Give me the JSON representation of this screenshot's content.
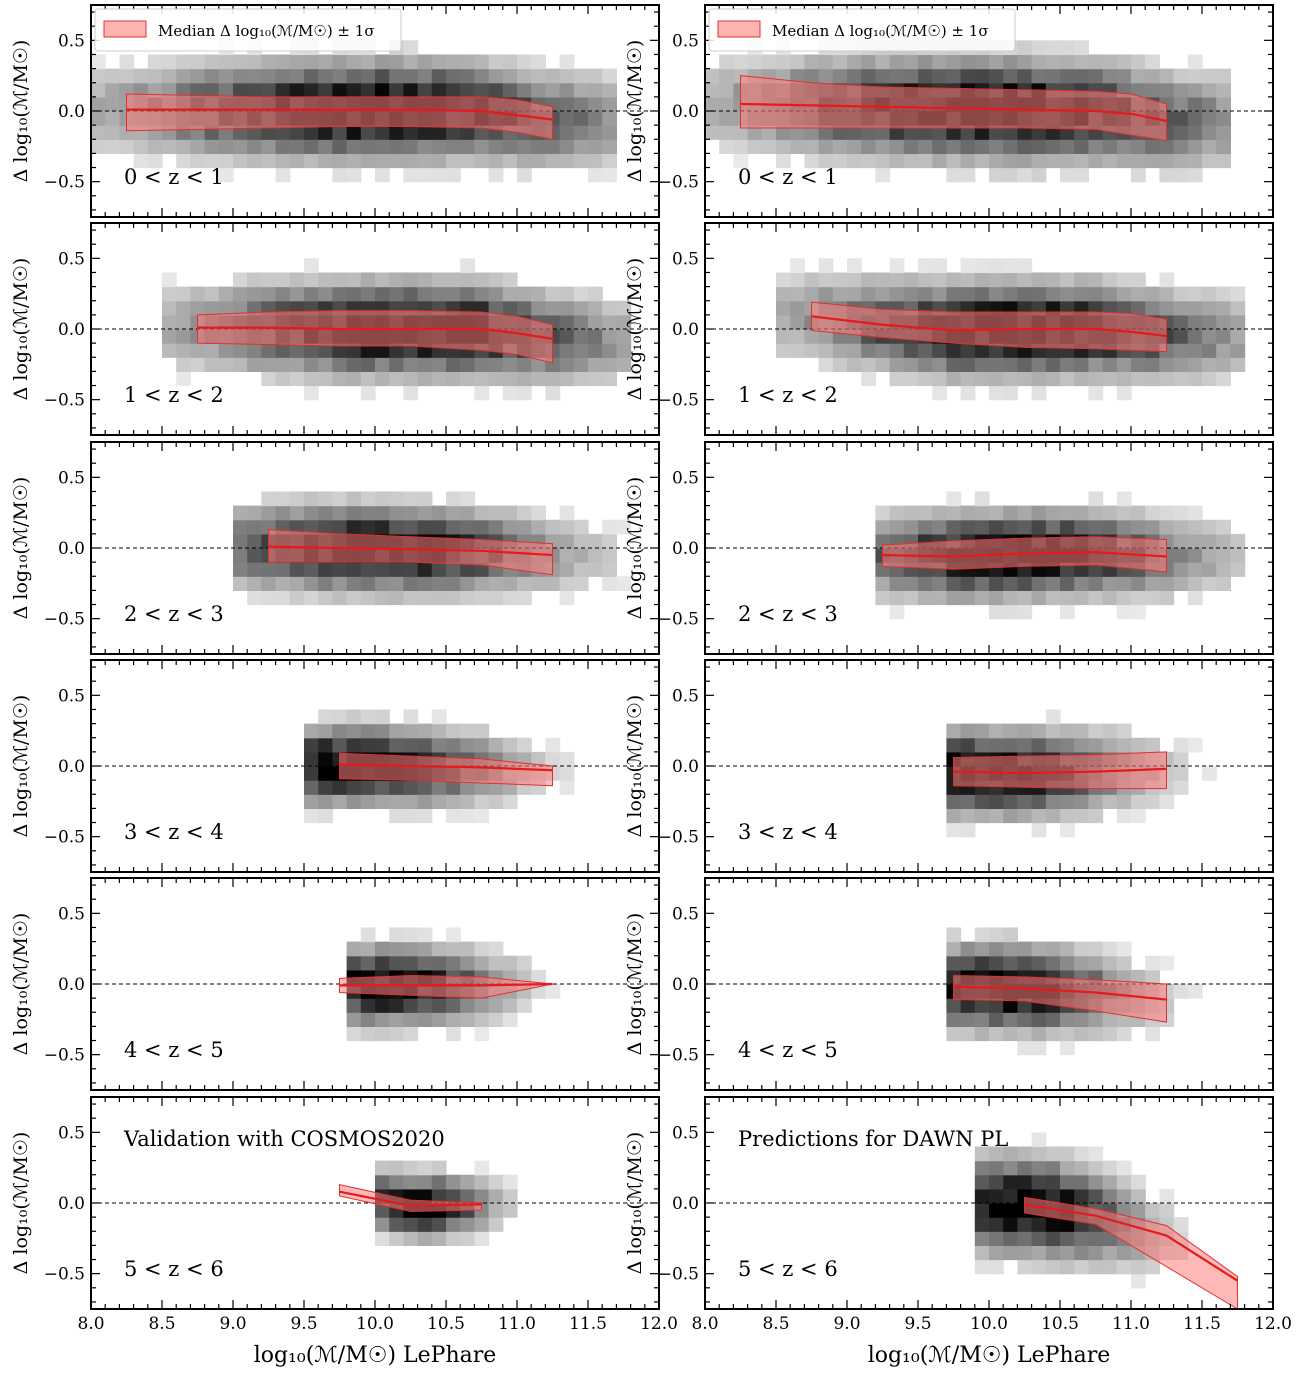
{
  "figure": {
    "left_column_label": "Validation with COSMOS2020",
    "right_column_label": "Predictions for DAWN PL",
    "legend_label": "Median Δ log₁₀(ℳ/M☉) ± 1σ",
    "xlabel": "log₁₀(ℳ/M☉) LePhare",
    "ylabel": "Δ log₁₀(ℳ/M☉)",
    "colors": {
      "band": "#ff8080",
      "band_edge": "#e03030",
      "median": "#e41a1c",
      "hist": "#000000",
      "zero_line": "#000000"
    }
  },
  "chart_data": [
    {
      "type": "heatmap",
      "column": "Validation with COSMOS2020",
      "panel_label": "0 < z < 1",
      "xlabel": "log₁₀(ℳ/M☉) LePhare",
      "ylabel": "Δ log₁₀(ℳ/M☉)",
      "xlim": [
        8.0,
        12.0
      ],
      "ylim": [
        -0.75,
        0.75
      ],
      "xticks": [
        "8.0",
        "8.5",
        "9.0",
        "9.5",
        "10.0",
        "10.5",
        "11.0",
        "11.5",
        "12.0"
      ],
      "yticks": [
        "0.5",
        "0.0",
        "−0.5"
      ],
      "hist_xrange": [
        8.0,
        11.7
      ],
      "hist_spread": 0.25,
      "hist_peak": 10.0,
      "hist_width": 1.4,
      "median": {
        "x": [
          8.25,
          8.75,
          9.25,
          9.75,
          10.25,
          10.75,
          11.0,
          11.25
        ],
        "y": [
          0.01,
          0.01,
          0.01,
          0.01,
          0.01,
          0.0,
          -0.03,
          -0.06
        ]
      },
      "band": {
        "x": [
          8.25,
          8.75,
          9.25,
          9.75,
          10.25,
          10.75,
          11.0,
          11.25
        ],
        "lower": [
          -0.14,
          -0.13,
          -0.12,
          -0.11,
          -0.11,
          -0.12,
          -0.15,
          -0.2
        ],
        "upper": [
          0.12,
          0.11,
          0.1,
          0.1,
          0.1,
          0.1,
          0.08,
          0.03
        ]
      },
      "legend": true
    },
    {
      "type": "heatmap",
      "column": "Predictions for DAWN PL",
      "panel_label": "0 < z < 1",
      "xlabel": "log₁₀(ℳ/M☉) LePhare",
      "ylabel": "Δ log₁₀(ℳ/M☉)",
      "xlim": [
        8.0,
        12.0
      ],
      "ylim": [
        -0.75,
        0.75
      ],
      "xticks": [
        "8.0",
        "8.5",
        "9.0",
        "9.5",
        "10.0",
        "10.5",
        "11.0",
        "11.5",
        "12.0"
      ],
      "yticks": [
        "0.5",
        "0.0",
        "−0.5"
      ],
      "hist_xrange": [
        8.0,
        11.7
      ],
      "hist_spread": 0.26,
      "hist_peak": 10.0,
      "hist_width": 1.4,
      "median": {
        "x": [
          8.25,
          8.75,
          9.25,
          9.75,
          10.25,
          10.75,
          11.0,
          11.25
        ],
        "y": [
          0.05,
          0.04,
          0.03,
          0.02,
          0.01,
          0.0,
          -0.02,
          -0.07
        ]
      },
      "band": {
        "x": [
          8.25,
          8.75,
          9.25,
          9.75,
          10.25,
          10.75,
          11.0,
          11.25
        ],
        "lower": [
          -0.12,
          -0.12,
          -0.12,
          -0.12,
          -0.12,
          -0.13,
          -0.17,
          -0.21
        ],
        "upper": [
          0.25,
          0.2,
          0.17,
          0.16,
          0.15,
          0.14,
          0.12,
          0.05
        ]
      },
      "legend": true
    },
    {
      "type": "heatmap",
      "column": "Validation with COSMOS2020",
      "panel_label": "1 < z < 2",
      "xlabel": "log₁₀(ℳ/M☉) LePhare",
      "ylabel": "Δ log₁₀(ℳ/M☉)",
      "xlim": [
        8.0,
        12.0
      ],
      "ylim": [
        -0.75,
        0.75
      ],
      "xticks": [
        "8.0",
        "8.5",
        "9.0",
        "9.5",
        "10.0",
        "10.5",
        "11.0",
        "11.5",
        "12.0"
      ],
      "yticks": [
        "0.5",
        "0.0",
        "−0.5"
      ],
      "hist_xrange": [
        8.5,
        11.8
      ],
      "hist_spread": 0.24,
      "hist_peak": 10.2,
      "hist_width": 1.2,
      "median": {
        "x": [
          8.75,
          9.25,
          9.75,
          10.25,
          10.75,
          11.0,
          11.25
        ],
        "y": [
          0.01,
          0.01,
          0.0,
          0.0,
          0.0,
          -0.03,
          -0.07
        ]
      },
      "band": {
        "x": [
          8.75,
          9.25,
          9.75,
          10.25,
          10.75,
          11.0,
          11.25
        ],
        "lower": [
          -0.1,
          -0.11,
          -0.12,
          -0.12,
          -0.15,
          -0.18,
          -0.24
        ],
        "upper": [
          0.1,
          0.12,
          0.13,
          0.13,
          0.12,
          0.09,
          0.03
        ]
      },
      "legend": false
    },
    {
      "type": "heatmap",
      "column": "Predictions for DAWN PL",
      "panel_label": "1 < z < 2",
      "xlabel": "log₁₀(ℳ/M☉) LePhare",
      "ylabel": "Δ log₁₀(ℳ/M☉)",
      "xlim": [
        8.0,
        12.0
      ],
      "ylim": [
        -0.75,
        0.75
      ],
      "xticks": [
        "8.0",
        "8.5",
        "9.0",
        "9.5",
        "10.0",
        "10.5",
        "11.0",
        "11.5",
        "12.0"
      ],
      "yticks": [
        "0.5",
        "0.0",
        "−0.5"
      ],
      "hist_xrange": [
        8.5,
        11.8
      ],
      "hist_spread": 0.24,
      "hist_peak": 10.2,
      "hist_width": 1.2,
      "median": {
        "x": [
          8.75,
          9.25,
          9.75,
          10.25,
          10.75,
          11.0,
          11.25
        ],
        "y": [
          0.09,
          0.03,
          -0.01,
          0.0,
          0.0,
          -0.02,
          -0.05
        ]
      },
      "band": {
        "x": [
          8.75,
          9.25,
          9.75,
          10.25,
          10.75,
          11.0,
          11.25
        ],
        "lower": [
          -0.01,
          -0.06,
          -0.1,
          -0.13,
          -0.14,
          -0.15,
          -0.16
        ],
        "upper": [
          0.19,
          0.14,
          0.12,
          0.12,
          0.12,
          0.11,
          0.07
        ]
      },
      "legend": false
    },
    {
      "type": "heatmap",
      "column": "Validation with COSMOS2020",
      "panel_label": "2 < z < 3",
      "xlabel": "log₁₀(ℳ/M☉) LePhare",
      "ylabel": "Δ log₁₀(ℳ/M☉)",
      "xlim": [
        8.0,
        12.0
      ],
      "ylim": [
        -0.75,
        0.75
      ],
      "xticks": [
        "8.0",
        "8.5",
        "9.0",
        "9.5",
        "10.0",
        "10.5",
        "11.0",
        "11.5",
        "12.0"
      ],
      "yticks": [
        "0.5",
        "0.0",
        "−0.5"
      ],
      "hist_xrange": [
        9.0,
        11.8
      ],
      "hist_spread": 0.22,
      "hist_peak": 10.0,
      "hist_width": 1.0,
      "median": {
        "x": [
          9.25,
          9.75,
          10.25,
          10.75,
          11.25
        ],
        "y": [
          0.01,
          0.0,
          -0.01,
          -0.02,
          -0.05
        ]
      },
      "band": {
        "x": [
          9.25,
          9.75,
          10.25,
          10.75,
          11.25
        ],
        "lower": [
          -0.1,
          -0.1,
          -0.1,
          -0.12,
          -0.19
        ],
        "upper": [
          0.13,
          0.1,
          0.08,
          0.06,
          0.03
        ]
      },
      "legend": false
    },
    {
      "type": "heatmap",
      "column": "Predictions for DAWN PL",
      "panel_label": "2 < z < 3",
      "xlabel": "log₁₀(ℳ/M☉) LePhare",
      "ylabel": "Δ log₁₀(ℳ/M☉)",
      "xlim": [
        8.0,
        12.0
      ],
      "ylim": [
        -0.75,
        0.75
      ],
      "xticks": [
        "8.0",
        "8.5",
        "9.0",
        "9.5",
        "10.0",
        "10.5",
        "11.0",
        "11.5",
        "12.0"
      ],
      "yticks": [
        "0.5",
        "0.0",
        "−0.5"
      ],
      "hist_xrange": [
        9.2,
        11.8
      ],
      "hist_spread": 0.22,
      "hist_peak": 10.2,
      "hist_width": 1.0,
      "median": {
        "x": [
          9.25,
          9.75,
          10.25,
          10.75,
          11.25
        ],
        "y": [
          -0.05,
          -0.06,
          -0.04,
          -0.03,
          -0.06
        ]
      },
      "band": {
        "x": [
          9.25,
          9.75,
          10.25,
          10.75,
          11.25
        ],
        "lower": [
          -0.13,
          -0.15,
          -0.13,
          -0.12,
          -0.17
        ],
        "upper": [
          0.02,
          0.05,
          0.07,
          0.08,
          0.06
        ]
      },
      "legend": false
    },
    {
      "type": "heatmap",
      "column": "Validation with COSMOS2020",
      "panel_label": "3 < z < 4",
      "xlabel": "log₁₀(ℳ/M☉) LePhare",
      "ylabel": "Δ log₁₀(ℳ/M☉)",
      "xlim": [
        8.0,
        12.0
      ],
      "ylim": [
        -0.75,
        0.75
      ],
      "xticks": [
        "8.0",
        "8.5",
        "9.0",
        "9.5",
        "10.0",
        "10.5",
        "11.0",
        "11.5",
        "12.0"
      ],
      "yticks": [
        "0.5",
        "0.0",
        "−0.5"
      ],
      "hist_xrange": [
        9.5,
        11.7
      ],
      "hist_spread": 0.2,
      "hist_peak": 9.9,
      "hist_width": 0.8,
      "median": {
        "x": [
          9.75,
          10.25,
          10.75,
          11.25
        ],
        "y": [
          0.01,
          0.0,
          -0.01,
          -0.03
        ]
      },
      "band": {
        "x": [
          9.75,
          10.25,
          10.75,
          11.25
        ],
        "lower": [
          -0.09,
          -0.1,
          -0.12,
          -0.14
        ],
        "upper": [
          0.09,
          0.07,
          0.05,
          0.0
        ]
      },
      "legend": false
    },
    {
      "type": "heatmap",
      "column": "Predictions for DAWN PL",
      "panel_label": "3 < z < 4",
      "xlabel": "log₁₀(ℳ/M☉) LePhare",
      "ylabel": "Δ log₁₀(ℳ/M☉)",
      "xlim": [
        8.0,
        12.0
      ],
      "ylim": [
        -0.75,
        0.75
      ],
      "xticks": [
        "8.0",
        "8.5",
        "9.0",
        "9.5",
        "10.0",
        "10.5",
        "11.0",
        "11.5",
        "12.0"
      ],
      "yticks": [
        "0.5",
        "0.0",
        "−0.5"
      ],
      "hist_xrange": [
        9.7,
        11.8
      ],
      "hist_spread": 0.22,
      "hist_peak": 10.0,
      "hist_width": 0.8,
      "median": {
        "x": [
          9.75,
          10.25,
          10.75,
          11.25
        ],
        "y": [
          -0.04,
          -0.05,
          -0.04,
          -0.02
        ]
      },
      "band": {
        "x": [
          9.75,
          10.25,
          10.75,
          11.25
        ],
        "lower": [
          -0.14,
          -0.15,
          -0.16,
          -0.16
        ],
        "upper": [
          0.06,
          0.07,
          0.08,
          0.1
        ]
      },
      "legend": false
    },
    {
      "type": "heatmap",
      "column": "Validation with COSMOS2020",
      "panel_label": "4 < z < 5",
      "xlabel": "log₁₀(ℳ/M☉) LePhare",
      "ylabel": "Δ log₁₀(ℳ/M☉)",
      "xlim": [
        8.0,
        12.0
      ],
      "ylim": [
        -0.75,
        0.75
      ],
      "xticks": [
        "8.0",
        "8.5",
        "9.0",
        "9.5",
        "10.0",
        "10.5",
        "11.0",
        "11.5",
        "12.0"
      ],
      "yticks": [
        "0.5",
        "0.0",
        "−0.5"
      ],
      "hist_xrange": [
        9.8,
        11.7
      ],
      "hist_spread": 0.2,
      "hist_peak": 10.1,
      "hist_width": 0.6,
      "median": {
        "x": [
          9.75,
          10.25,
          10.75,
          11.25
        ],
        "y": [
          -0.01,
          -0.01,
          -0.01,
          0.0
        ]
      },
      "band": {
        "x": [
          9.75,
          10.25,
          10.75,
          11.25
        ],
        "lower": [
          -0.06,
          -0.08,
          -0.1,
          0.0
        ],
        "upper": [
          0.04,
          0.06,
          0.05,
          0.0
        ]
      },
      "legend": false
    },
    {
      "type": "heatmap",
      "column": "Predictions for DAWN PL",
      "panel_label": "4 < z < 5",
      "xlabel": "log₁₀(ℳ/M☉) LePhare",
      "ylabel": "Δ log₁₀(ℳ/M☉)",
      "xlim": [
        8.0,
        12.0
      ],
      "ylim": [
        -0.75,
        0.75
      ],
      "xticks": [
        "8.0",
        "8.5",
        "9.0",
        "9.5",
        "10.0",
        "10.5",
        "11.0",
        "11.5",
        "12.0"
      ],
      "yticks": [
        "0.5",
        "0.0",
        "−0.5"
      ],
      "hist_xrange": [
        9.7,
        11.9
      ],
      "hist_spread": 0.22,
      "hist_peak": 10.1,
      "hist_width": 0.7,
      "median": {
        "x": [
          9.75,
          10.25,
          10.75,
          11.25
        ],
        "y": [
          -0.02,
          -0.03,
          -0.06,
          -0.11
        ]
      },
      "band": {
        "x": [
          9.75,
          10.25,
          10.75,
          11.25
        ],
        "lower": [
          -0.11,
          -0.12,
          -0.19,
          -0.27
        ],
        "upper": [
          0.06,
          0.05,
          0.03,
          0.0
        ]
      },
      "legend": false
    },
    {
      "type": "heatmap",
      "column": "Validation with COSMOS2020",
      "panel_label": "5 < z < 6",
      "xlabel": "log₁₀(ℳ/M☉) LePhare",
      "ylabel": "Δ log₁₀(ℳ/M☉)",
      "xlim": [
        8.0,
        12.0
      ],
      "ylim": [
        -0.75,
        0.75
      ],
      "xticks": [
        "8.0",
        "8.5",
        "9.0",
        "9.5",
        "10.0",
        "10.5",
        "11.0",
        "11.5",
        "12.0"
      ],
      "yticks": [
        "0.5",
        "0.0",
        "−0.5"
      ],
      "hist_xrange": [
        10.0,
        11.0
      ],
      "hist_spread": 0.16,
      "hist_peak": 10.3,
      "hist_width": 0.4,
      "median": {
        "x": [
          9.75,
          10.25,
          10.75
        ],
        "y": [
          0.08,
          -0.02,
          -0.01
        ]
      },
      "band": {
        "x": [
          9.75,
          10.25,
          10.75
        ],
        "lower": [
          0.05,
          -0.06,
          -0.05
        ],
        "upper": [
          0.13,
          0.02,
          -0.0
        ]
      },
      "legend": false
    },
    {
      "type": "heatmap",
      "column": "Predictions for DAWN PL",
      "panel_label": "5 < z < 6",
      "xlabel": "log₁₀(ℳ/M☉) LePhare",
      "ylabel": "Δ log₁₀(ℳ/M☉)",
      "xlim": [
        8.0,
        12.0
      ],
      "ylim": [
        -0.75,
        0.75
      ],
      "xticks": [
        "8.0",
        "8.5",
        "9.0",
        "9.5",
        "10.0",
        "10.5",
        "11.0",
        "11.5",
        "12.0"
      ],
      "yticks": [
        "0.5",
        "0.0",
        "−0.5"
      ],
      "hist_xrange": [
        9.9,
        11.9
      ],
      "hist_spread": 0.25,
      "hist_peak": 10.3,
      "hist_width": 0.6,
      "median": {
        "x": [
          10.25,
          10.75,
          11.25,
          11.75
        ],
        "y": [
          -0.01,
          -0.09,
          -0.23,
          -0.55
        ]
      },
      "band": {
        "x": [
          10.25,
          10.75,
          11.25,
          11.75
        ],
        "lower": [
          -0.07,
          -0.15,
          -0.45,
          -0.75
        ],
        "upper": [
          0.04,
          -0.04,
          -0.16,
          -0.52
        ]
      },
      "legend": false
    }
  ]
}
